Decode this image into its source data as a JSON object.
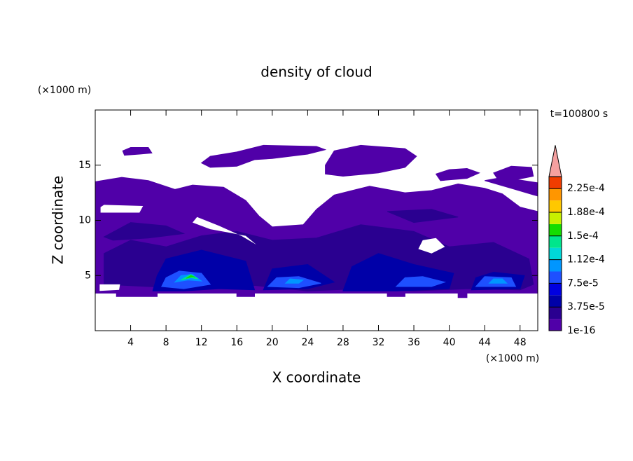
{
  "chart_data": {
    "type": "contour",
    "title": "density of cloud",
    "time_label": "t=100800 s",
    "xlabel": "X coordinate",
    "ylabel": "Z coordinate",
    "xunit": "(×1000 m)",
    "yunit": "(×1000 m)",
    "xlim": [
      0,
      50
    ],
    "ylim": [
      0,
      20
    ],
    "xticks": [
      4,
      8,
      12,
      16,
      20,
      24,
      28,
      32,
      36,
      40,
      44,
      48
    ],
    "yticks": [
      5,
      10,
      15
    ],
    "levels": [
      1e-16,
      1.875e-05,
      3.75e-05,
      5.625e-05,
      7.5e-05,
      9.375e-05,
      0.0001125,
      0.00013125,
      0.00015,
      0.00016875,
      0.0001875,
      0.00020625,
      0.000225,
      0.00024375
    ],
    "colors": [
      "#5000a8",
      "#2a0090",
      "#0000a8",
      "#0000e0",
      "#1e50ff",
      "#0096ff",
      "#00d8d8",
      "#00e68c",
      "#14dc00",
      "#c8f000",
      "#ffc800",
      "#ff9600",
      "#f03c00"
    ],
    "extend_color": "#f5a0a0",
    "colorbar_ticks": [
      {
        "value": 1e-16,
        "label": "1e-16"
      },
      {
        "value": 3.75e-05,
        "label": "3.75e-5"
      },
      {
        "value": 7.5e-05,
        "label": "7.5e-5"
      },
      {
        "value": 0.0001125,
        "label": "1.12e-4"
      },
      {
        "value": 0.00015,
        "label": "1.5e-4"
      },
      {
        "value": 0.0001875,
        "label": "1.88e-4"
      },
      {
        "value": 0.000225,
        "label": "2.25e-4"
      }
    ]
  }
}
